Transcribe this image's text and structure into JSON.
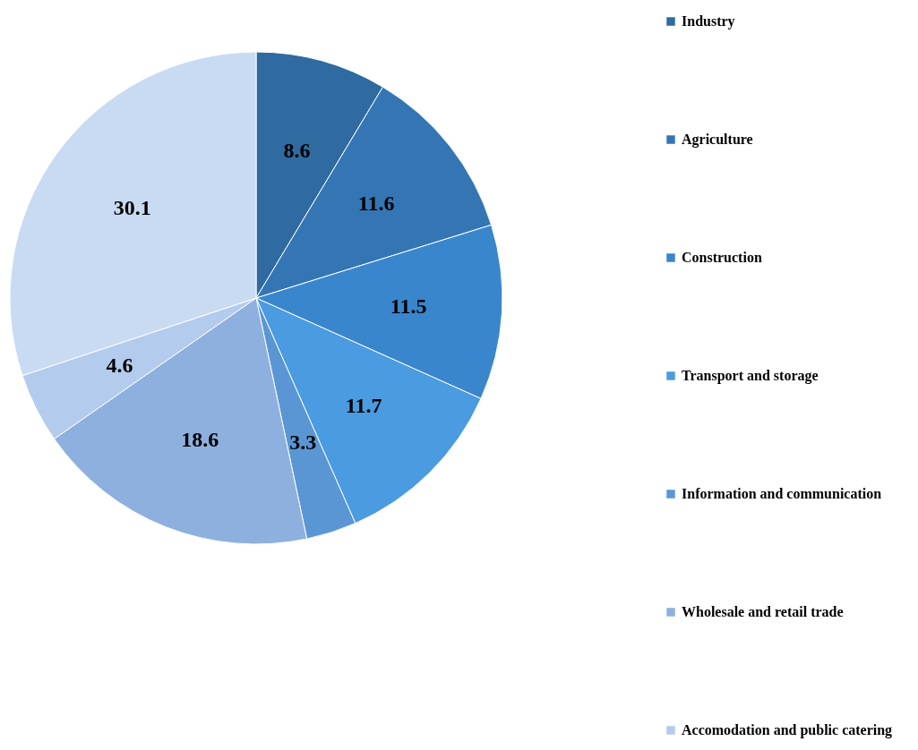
{
  "chart_data": {
    "type": "pie",
    "categories": [
      "Industry",
      "Agriculture",
      "Construction",
      "Transport and storage",
      "Information and communication",
      "Wholesale and retail trade",
      "Accomodation and public catering",
      null
    ],
    "values": [
      8.6,
      11.6,
      11.5,
      11.7,
      3.3,
      18.6,
      4.6,
      30.1
    ],
    "colors": [
      "#2f6aa0",
      "#3476b4",
      "#3a86cc",
      "#4a9be0",
      "#5b96d4",
      "#8eb0de",
      "#b3cbec",
      "#c8dbf2"
    ],
    "data_labels": true,
    "legend": "right"
  }
}
